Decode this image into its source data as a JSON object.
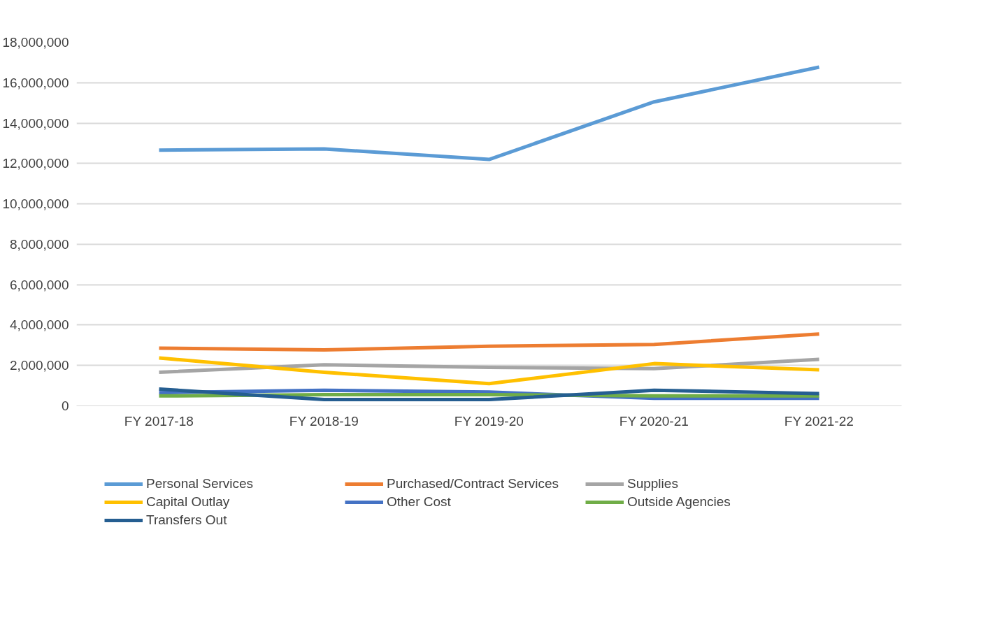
{
  "chart_data": {
    "type": "line",
    "categories": [
      "FY 2017-18",
      "FY 2018-19",
      "FY 2019-20",
      "FY 2020-21",
      "FY 2021-22"
    ],
    "ylim": [
      0,
      18000000
    ],
    "yticks": [
      {
        "value": 0,
        "label": "0"
      },
      {
        "value": 2000000,
        "label": "2,000,000"
      },
      {
        "value": 4000000,
        "label": "4,000,000"
      },
      {
        "value": 6000000,
        "label": "6,000,000"
      },
      {
        "value": 8000000,
        "label": "8,000,000"
      },
      {
        "value": 10000000,
        "label": "10,000,000"
      },
      {
        "value": 12000000,
        "label": "12,000,000"
      },
      {
        "value": 14000000,
        "label": "14,000,000"
      },
      {
        "value": 16000000,
        "label": "16,000,000"
      },
      {
        "value": 18000000,
        "label": "18,000,000"
      }
    ],
    "grid": "y",
    "legend": "bottom",
    "marker": "none",
    "line_style": "solid",
    "series": [
      {
        "name": "Personal Services",
        "color": "#5b9bd5",
        "values": [
          12660000,
          12720000,
          12200000,
          15050000,
          16770000
        ]
      },
      {
        "name": "Purchased/Contract Services",
        "color": "#ed7d31",
        "values": [
          2860000,
          2770000,
          2950000,
          3040000,
          3560000
        ]
      },
      {
        "name": "Supplies",
        "color": "#a5a5a5",
        "values": [
          1660000,
          2030000,
          1900000,
          1840000,
          2300000
        ]
      },
      {
        "name": "Capital Outlay",
        "color": "#ffc000",
        "values": [
          2370000,
          1660000,
          1100000,
          2090000,
          1780000
        ]
      },
      {
        "name": "Other Cost",
        "color": "#4472c4",
        "values": [
          650000,
          770000,
          680000,
          370000,
          370000
        ]
      },
      {
        "name": "Outside Agencies",
        "color": "#70ad47",
        "values": [
          490000,
          550000,
          550000,
          490000,
          490000
        ]
      },
      {
        "name": "Transfers Out",
        "color": "#255e91",
        "values": [
          830000,
          310000,
          310000,
          770000,
          610000
        ]
      }
    ]
  }
}
